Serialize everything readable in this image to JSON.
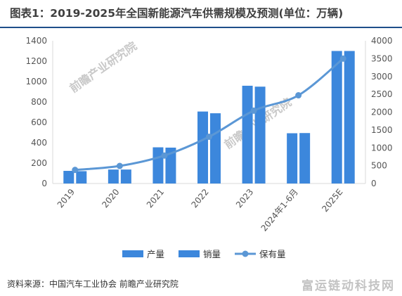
{
  "title": "图表1：2019-2025年全国新能源汽车供需规模及预测(单位：万辆)",
  "source": "资料来源：中国汽车工业协会 前瞻产业研究院",
  "watermark_bottom": "富运链动科技网",
  "watermark_chart": "前瞻产业研究院",
  "colors": {
    "bar": "#3c87dc",
    "line": "#5b97d5",
    "axis": "#d9d9d9",
    "rule": "#1e4f8a"
  },
  "chart_data": {
    "type": "bar",
    "categories": [
      "2019",
      "2020",
      "2021",
      "2022",
      "2023",
      "2024年1-6月",
      "2025E"
    ],
    "series": [
      {
        "name": "产量",
        "type": "bar",
        "axis": "left",
        "values": [
          124,
          137,
          355,
          706,
          959,
          493,
          1300
        ]
      },
      {
        "name": "销量",
        "type": "bar",
        "axis": "left",
        "values": [
          121,
          137,
          352,
          689,
          950,
          495,
          1300
        ]
      },
      {
        "name": "保有量",
        "type": "line",
        "axis": "right",
        "values": [
          381,
          492,
          784,
          1310,
          2041,
          2472,
          3500
        ]
      }
    ],
    "y_left": {
      "min": 0,
      "max": 1400,
      "ticks": [
        "0",
        "200",
        "400",
        "600",
        "800",
        "1000",
        "1200",
        "1400"
      ]
    },
    "y_right": {
      "min": 0,
      "max": 4000,
      "ticks": [
        "0",
        "500",
        "1000",
        "1500",
        "2000",
        "2500",
        "3000",
        "3500",
        "4000"
      ]
    },
    "legend_position": "bottom",
    "grid": false
  }
}
